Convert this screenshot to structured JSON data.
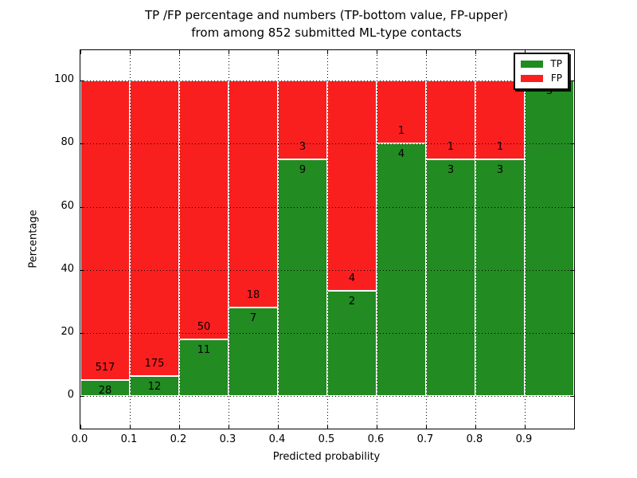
{
  "figure": {
    "title_line1": "TP /FP percentage and numbers (TP-bottom value, FP-upper)",
    "title_line2": "from among 852 submitted ML-type contacts",
    "xlabel": "Predicted probability",
    "ylabel": "Percentage"
  },
  "legend": {
    "items": [
      {
        "label": "TP",
        "color": "#228b22"
      },
      {
        "label": "FP",
        "color": "#fa1f1f"
      }
    ]
  },
  "chart_data": {
    "type": "bar",
    "subtype": "stacked-percentage-histogram",
    "title": "TP /FP percentage and numbers (TP-bottom value, FP-upper) from among 852 submitted ML-type contacts",
    "xlabel": "Predicted probability",
    "ylabel": "Percentage",
    "total_contacts": 852,
    "x_tick_labels": [
      "0.0",
      "0.1",
      "0.2",
      "0.3",
      "0.4",
      "0.5",
      "0.6",
      "0.7",
      "0.8",
      "0.9"
    ],
    "y_ticks": [
      0,
      20,
      40,
      60,
      80,
      100
    ],
    "xlim": [
      0.0,
      1.0
    ],
    "ylim": [
      -10.4,
      109.6
    ],
    "bin_width": 0.1,
    "grid": true,
    "grid_style": "dotted",
    "legend_position": "upper right",
    "legend_entries": [
      "TP",
      "FP"
    ],
    "colors": {
      "TP": "#228b22",
      "FP": "#fa1f1f"
    },
    "bins": [
      {
        "range": "0.0-0.1",
        "tp": 28,
        "fp": 517,
        "tp_pct": 5.14
      },
      {
        "range": "0.1-0.2",
        "tp": 12,
        "fp": 175,
        "tp_pct": 6.42
      },
      {
        "range": "0.2-0.3",
        "tp": 11,
        "fp": 50,
        "tp_pct": 18.03
      },
      {
        "range": "0.3-0.4",
        "tp": 7,
        "fp": 18,
        "tp_pct": 28.0
      },
      {
        "range": "0.4-0.5",
        "tp": 9,
        "fp": 3,
        "tp_pct": 75.0
      },
      {
        "range": "0.5-0.6",
        "tp": 2,
        "fp": 4,
        "tp_pct": 33.33
      },
      {
        "range": "0.6-0.7",
        "tp": 4,
        "fp": 1,
        "tp_pct": 80.0
      },
      {
        "range": "0.7-0.8",
        "tp": 3,
        "fp": 1,
        "tp_pct": 75.0
      },
      {
        "range": "0.8-0.9",
        "tp": 3,
        "fp": 1,
        "tp_pct": 75.0
      },
      {
        "range": "0.9-1.0",
        "tp": 3,
        "fp": 0,
        "tp_pct": 100.0
      }
    ]
  }
}
